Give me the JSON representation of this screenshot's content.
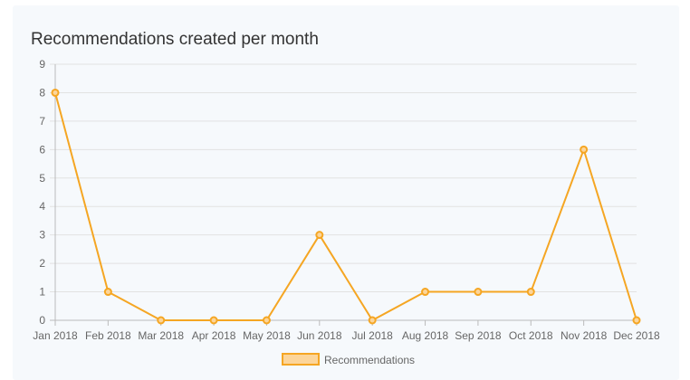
{
  "chart_data": {
    "type": "line",
    "title": "Recommendations created per month",
    "xlabel": "",
    "ylabel": "",
    "categories": [
      "Jan 2018",
      "Feb 2018",
      "Mar 2018",
      "Apr 2018",
      "May 2018",
      "Jun 2018",
      "Jul 2018",
      "Aug 2018",
      "Sep 2018",
      "Oct 2018",
      "Nov 2018",
      "Dec 2018"
    ],
    "series": [
      {
        "name": "Recommendations",
        "values": [
          8,
          1,
          0,
          0,
          0,
          3,
          0,
          1,
          1,
          1,
          6,
          0
        ],
        "color": "#f5a623",
        "fill": "#fcd59a"
      }
    ],
    "ylim": [
      0,
      9
    ],
    "yticks": [
      0,
      1,
      2,
      3,
      4,
      5,
      6,
      7,
      8,
      9
    ],
    "grid": true,
    "legend": "bottom-center"
  },
  "colors": {
    "background": "#f6f9fc",
    "grid": "#e2e2e2",
    "axis": "#bbbbbb"
  }
}
